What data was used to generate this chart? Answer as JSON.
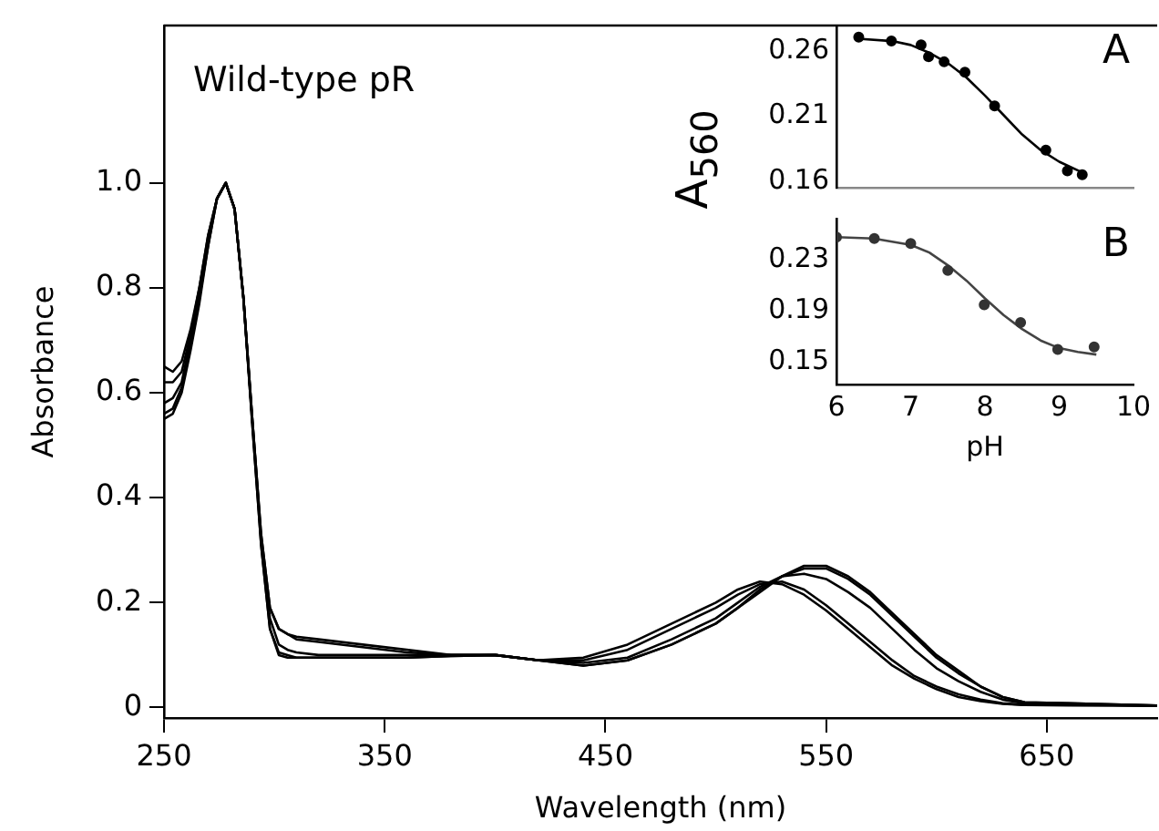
{
  "chart_data": [
    {
      "type": "line",
      "title": "Wild-type pR",
      "xlabel": "Wavelength (nm)",
      "ylabel": "Absorbance",
      "xlim": [
        250,
        700
      ],
      "xticks": [
        250,
        350,
        450,
        550,
        650
      ],
      "ylim": [
        -0.02,
        1.3
      ],
      "yticks": [
        0,
        0.2,
        0.4,
        0.6,
        0.8,
        {
          "value": 1,
          "label": "1.0"
        }
      ],
      "grid": false,
      "legend": false,
      "line_style": "solid",
      "marker": "none",
      "x": [
        250,
        254,
        258,
        262,
        266,
        270,
        274,
        278,
        282,
        286,
        290,
        294,
        298,
        302,
        306,
        310,
        320,
        340,
        360,
        380,
        400,
        420,
        440,
        460,
        480,
        500,
        510,
        520,
        530,
        540,
        550,
        560,
        570,
        580,
        590,
        600,
        610,
        620,
        630,
        640,
        660,
        680,
        700
      ],
      "series": [
        {
          "color": "#000000",
          "values": [
            0.55,
            0.56,
            0.6,
            0.68,
            0.77,
            0.88,
            0.97,
            1.0,
            0.95,
            0.78,
            0.55,
            0.33,
            0.19,
            0.15,
            0.14,
            0.135,
            0.13,
            0.12,
            0.11,
            0.1,
            0.1,
            0.09,
            0.08,
            0.09,
            0.12,
            0.16,
            0.19,
            0.22,
            0.25,
            0.27,
            0.27,
            0.25,
            0.22,
            0.18,
            0.14,
            0.1,
            0.07,
            0.04,
            0.02,
            0.01,
            0.008,
            0.006,
            0.004
          ]
        },
        {
          "color": "#000000",
          "values": [
            0.56,
            0.57,
            0.61,
            0.69,
            0.78,
            0.88,
            0.97,
            1.0,
            0.95,
            0.78,
            0.55,
            0.33,
            0.19,
            0.15,
            0.14,
            0.13,
            0.125,
            0.115,
            0.105,
            0.1,
            0.1,
            0.09,
            0.08,
            0.09,
            0.12,
            0.16,
            0.19,
            0.225,
            0.25,
            0.265,
            0.265,
            0.245,
            0.215,
            0.175,
            0.135,
            0.095,
            0.065,
            0.04,
            0.02,
            0.01,
            0.008,
            0.006,
            0.004
          ]
        },
        {
          "color": "#000000",
          "values": [
            0.58,
            0.59,
            0.62,
            0.7,
            0.79,
            0.89,
            0.97,
            1.0,
            0.95,
            0.78,
            0.55,
            0.32,
            0.17,
            0.12,
            0.11,
            0.105,
            0.1,
            0.1,
            0.1,
            0.1,
            0.1,
            0.09,
            0.085,
            0.095,
            0.13,
            0.17,
            0.2,
            0.23,
            0.25,
            0.255,
            0.245,
            0.22,
            0.19,
            0.15,
            0.11,
            0.075,
            0.05,
            0.03,
            0.015,
            0.008,
            0.006,
            0.005,
            0.004
          ]
        },
        {
          "color": "#000000",
          "values": [
            0.62,
            0.62,
            0.64,
            0.71,
            0.8,
            0.9,
            0.97,
            1.0,
            0.95,
            0.78,
            0.54,
            0.31,
            0.15,
            0.105,
            0.1,
            0.095,
            0.095,
            0.095,
            0.095,
            0.098,
            0.1,
            0.09,
            0.09,
            0.11,
            0.15,
            0.19,
            0.215,
            0.235,
            0.24,
            0.225,
            0.195,
            0.16,
            0.125,
            0.09,
            0.06,
            0.04,
            0.025,
            0.015,
            0.008,
            0.005,
            0.005,
            0.004,
            0.003
          ]
        },
        {
          "color": "#000000",
          "values": [
            0.65,
            0.64,
            0.66,
            0.72,
            0.8,
            0.9,
            0.97,
            1.0,
            0.95,
            0.78,
            0.54,
            0.31,
            0.15,
            0.1,
            0.095,
            0.095,
            0.095,
            0.095,
            0.095,
            0.098,
            0.1,
            0.09,
            0.095,
            0.12,
            0.16,
            0.2,
            0.225,
            0.24,
            0.235,
            0.215,
            0.185,
            0.15,
            0.115,
            0.08,
            0.055,
            0.035,
            0.02,
            0.012,
            0.007,
            0.005,
            0.004,
            0.004,
            0.003
          ]
        }
      ]
    },
    {
      "type": "scatter",
      "annotations": [
        "A"
      ],
      "xlim": [
        6,
        10
      ],
      "ylim": [
        0.155,
        0.28
      ],
      "yticks": [
        0.16,
        0.21,
        0.26
      ],
      "tick_labels": "y",
      "grid": false,
      "legend": false,
      "series": [
        {
          "color": "#000000",
          "marker": "circle",
          "x": [
            6.3,
            6.74,
            7.14,
            7.24,
            7.45,
            7.73,
            8.13,
            8.82,
            9.11,
            9.31
          ],
          "values": [
            0.271,
            0.268,
            0.265,
            0.256,
            0.252,
            0.244,
            0.218,
            0.184,
            0.168,
            0.165
          ]
        },
        {
          "type": "line",
          "color": "#000000",
          "marker": "none",
          "line_style": "solid",
          "x": [
            6.25,
            6.75,
            7.0,
            7.25,
            7.5,
            7.75,
            8.0,
            8.25,
            8.5,
            8.75,
            9.0,
            9.3
          ],
          "values": [
            0.27,
            0.268,
            0.265,
            0.259,
            0.251,
            0.24,
            0.226,
            0.211,
            0.196,
            0.184,
            0.175,
            0.167
          ]
        }
      ]
    },
    {
      "type": "scatter",
      "annotations": [
        "B"
      ],
      "xlabel": "pH",
      "ylabel": "A$_{560}$",
      "xlim": [
        6,
        10
      ],
      "xticks": [
        6,
        7,
        8,
        9,
        10
      ],
      "ylim": [
        0.1325,
        0.2625
      ],
      "yticks": [
        0.15,
        0.19,
        0.23
      ],
      "grid": false,
      "legend": false,
      "series": [
        {
          "color": "#333333",
          "marker": "circle",
          "x": [
            6.0,
            6.51,
            7.0,
            7.5,
            7.99,
            8.48,
            8.98,
            9.47
          ],
          "values": [
            0.248,
            0.247,
            0.243,
            0.222,
            0.195,
            0.181,
            0.16,
            0.162
          ]
        },
        {
          "type": "line",
          "color": "#444444",
          "marker": "none",
          "line_style": "solid",
          "x": [
            6.0,
            6.5,
            7.0,
            7.25,
            7.5,
            7.75,
            8.0,
            8.25,
            8.5,
            8.75,
            9.0,
            9.25,
            9.5
          ],
          "values": [
            0.248,
            0.247,
            0.242,
            0.236,
            0.226,
            0.214,
            0.2,
            0.187,
            0.176,
            0.167,
            0.161,
            0.158,
            0.156
          ]
        }
      ]
    }
  ]
}
